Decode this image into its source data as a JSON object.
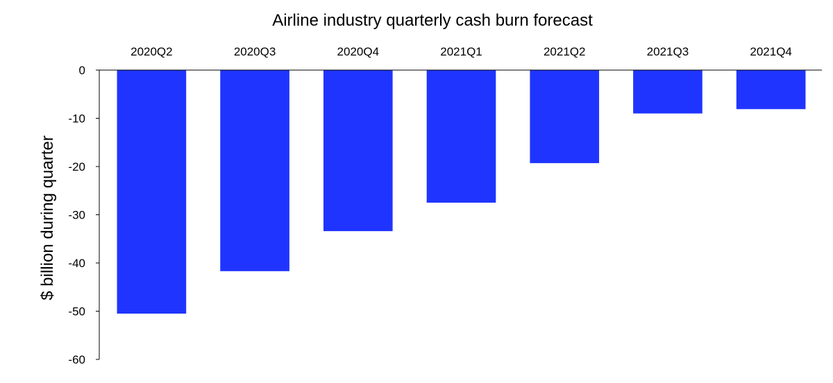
{
  "chart_data": {
    "type": "bar",
    "title": "Airline industry quarterly cash burn forecast",
    "ylabel": "$ billion during quarter",
    "xlabel": "",
    "categories": [
      "2020Q2",
      "2020Q3",
      "2020Q4",
      "2021Q1",
      "2021Q2",
      "2021Q3",
      "2021Q4"
    ],
    "values": [
      -50.5,
      -41.7,
      -33.4,
      -27.5,
      -19.3,
      -9.0,
      -8.1
    ],
    "ylim": [
      -60,
      0
    ],
    "yticks": [
      "0",
      "-10",
      "-20",
      "-30",
      "-40",
      "-50",
      "-60"
    ],
    "category_axis_position": "top",
    "grid": false,
    "legend": "none",
    "bar_color": "#1f35ff"
  }
}
